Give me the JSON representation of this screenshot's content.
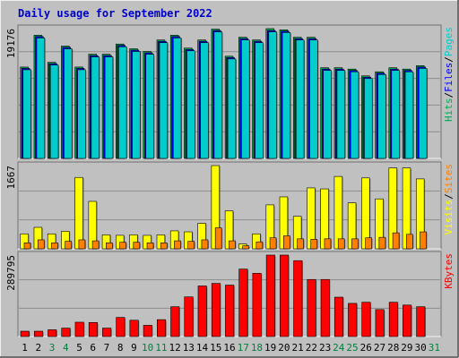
{
  "colors": {
    "background": "#c0c0c0",
    "title": "#0000cc",
    "pages": "#00cccc",
    "files": "#0000ff",
    "hits": "#00aa55",
    "visits": "#ffff00",
    "sites": "#ff8000",
    "kbytes": "#ff0000",
    "weekend": "#008040",
    "weekday": "#000000"
  },
  "chart_data": {
    "type": "bar",
    "title": "Daily usage for September 2022",
    "days": [
      "1",
      "2",
      "3",
      "4",
      "5",
      "6",
      "7",
      "8",
      "9",
      "10",
      "11",
      "12",
      "13",
      "14",
      "15",
      "16",
      "17",
      "18",
      "19",
      "20",
      "21",
      "22",
      "23",
      "24",
      "25",
      "26",
      "27",
      "28",
      "29",
      "30",
      "31"
    ],
    "weekend_days": [
      "3",
      "4",
      "10",
      "11",
      "17",
      "18",
      "24",
      "25",
      "31"
    ],
    "panels": [
      {
        "label_parts": [
          "Hits",
          "/",
          "Files",
          "/",
          "Pages"
        ],
        "label_colors": [
          "hits",
          "weekday",
          "files",
          "weekday",
          "pages"
        ],
        "max_label": "19176",
        "ylim": [
          0,
          19176
        ],
        "series": [
          {
            "name": "Hits",
            "color": "hits",
            "values": [
              13500,
              18200,
              14200,
              16600,
              13500,
              15400,
              15400,
              16900,
              16200,
              15800,
              17500,
              18200,
              16300,
              17500,
              19100,
              15100,
              17900,
              17500,
              19176,
              19000,
              17900,
              17900,
              13400,
              13400,
              13200,
              12200,
              12800,
              13400,
              13200,
              13700,
              null
            ]
          },
          {
            "name": "Files",
            "color": "files",
            "values": [
              13300,
              18000,
              14000,
              16400,
              13300,
              15200,
              15200,
              16700,
              16000,
              15600,
              17300,
              18000,
              16100,
              17300,
              18900,
              14900,
              17700,
              17300,
              18900,
              18800,
              17700,
              17700,
              13200,
              13200,
              13000,
              12000,
              12600,
              13200,
              13000,
              13500,
              null
            ]
          },
          {
            "name": "Pages",
            "color": "pages",
            "values": [
              13100,
              17800,
              13800,
              16200,
              13100,
              15000,
              15000,
              16500,
              15800,
              15400,
              17100,
              17800,
              15900,
              17100,
              18700,
              14700,
              17500,
              17100,
              18700,
              18600,
              17500,
              17500,
              13000,
              13000,
              12800,
              11800,
              12400,
              13000,
              12800,
              13300,
              null
            ]
          }
        ]
      },
      {
        "label_parts": [
          "Visits",
          "/",
          "Sites"
        ],
        "label_colors": [
          "visits",
          "weekday",
          "sites"
        ],
        "max_label": "1667",
        "ylim": [
          0,
          1667
        ],
        "series": [
          {
            "name": "Visits",
            "color": "visits",
            "values": [
              300,
              430,
              300,
              350,
              1430,
              950,
              280,
              270,
              280,
              270,
              280,
              360,
              340,
              510,
              1667,
              760,
              95,
              300,
              880,
              1040,
              650,
              1220,
              1200,
              1450,
              920,
              1420,
              1000,
              1620,
              1620,
              1400,
              null
            ]
          },
          {
            "name": "Sites",
            "color": "sites",
            "values": [
              120,
              180,
              120,
              150,
              180,
              160,
              120,
              130,
              130,
              120,
              120,
              160,
              150,
              180,
              420,
              160,
              60,
              140,
              220,
              260,
              200,
              190,
              200,
              200,
              200,
              220,
              230,
              320,
              290,
              340,
              null
            ]
          }
        ]
      },
      {
        "label_parts": [
          "KBytes"
        ],
        "label_colors": [
          "kbytes"
        ],
        "max_label": "289795",
        "ylim": [
          0,
          289795
        ],
        "series": [
          {
            "name": "KBytes",
            "color": "kbytes",
            "values": [
              19000,
              19000,
              24000,
              30000,
              51000,
              50000,
              30000,
              68000,
              58000,
              40000,
              60000,
              106000,
              141000,
              180000,
              189000,
              183000,
              240000,
              225000,
              289795,
              289795,
              270000,
              203000,
              203000,
              140000,
              118000,
              122000,
              96000,
              122000,
              112000,
              106000,
              null
            ]
          }
        ]
      }
    ]
  }
}
